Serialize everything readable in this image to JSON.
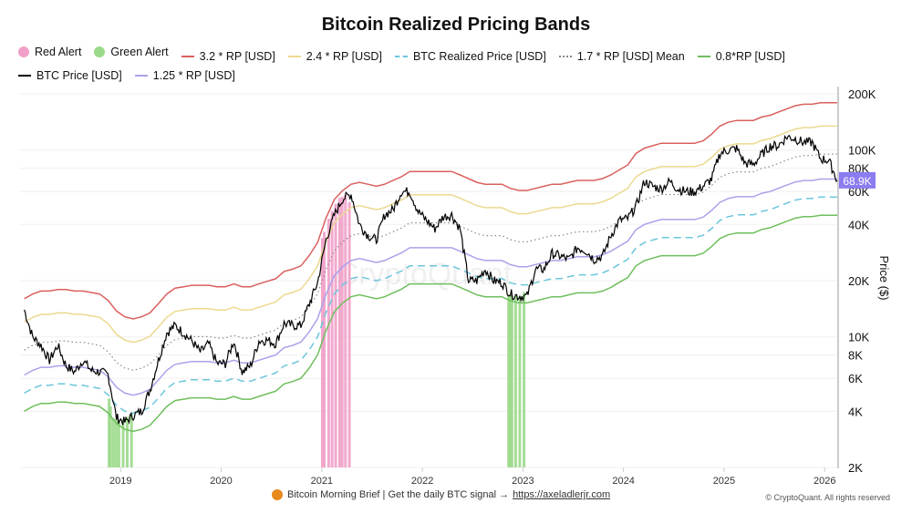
{
  "chart_data": {
    "type": "line",
    "title": "Bitcoin Realized Pricing Bands",
    "ylabel": "Price ($)",
    "yscale": "log",
    "ylim": [
      2000,
      200000
    ],
    "xlim": [
      "2018-01",
      "2026-02"
    ],
    "grid": true,
    "legend_position": "top",
    "x_ticks": [
      "2019",
      "2020",
      "2021",
      "2022",
      "2023",
      "2024",
      "2025",
      "2026"
    ],
    "y_ticks": [
      {
        "v": 2000,
        "label": "2K"
      },
      {
        "v": 4000,
        "label": "4K"
      },
      {
        "v": 6000,
        "label": "6K"
      },
      {
        "v": 8000,
        "label": "8K"
      },
      {
        "v": 10000,
        "label": "10K"
      },
      {
        "v": 20000,
        "label": "20K"
      },
      {
        "v": 40000,
        "label": "40K"
      },
      {
        "v": 60000,
        "label": "60K"
      },
      {
        "v": 80000,
        "label": "80K"
      },
      {
        "v": 100000,
        "label": "100K"
      },
      {
        "v": 200000,
        "label": "200K"
      }
    ],
    "last_value_label": "68.9K",
    "legend": [
      {
        "name": "Red Alert",
        "kind": "dot",
        "color": "#f0a0c8"
      },
      {
        "name": "Green Alert",
        "kind": "dot",
        "color": "#9bd98a"
      },
      {
        "name": "3.2 * RP [USD]",
        "kind": "line",
        "color": "#d9605e",
        "multiplier": 3.2
      },
      {
        "name": "2.4 * RP [USD]",
        "kind": "line",
        "color": "#ecd98f",
        "multiplier": 2.4
      },
      {
        "name": "BTC Realized Price [USD]",
        "kind": "dash",
        "color": "#6cc6dc",
        "multiplier": 1.0
      },
      {
        "name": "1.7 * RP [USD] Mean",
        "kind": "dot-line",
        "color": "#888888",
        "multiplier": 1.7
      },
      {
        "name": "0.8*RP [USD]",
        "kind": "line",
        "color": "#6fbf5e",
        "multiplier": 0.8
      },
      {
        "name": "BTC Price [USD]",
        "kind": "line",
        "color": "#000000"
      },
      {
        "name": "1.25 * RP [USD]",
        "kind": "line",
        "color": "#a9a3ea",
        "multiplier": 1.25
      }
    ],
    "months_start": "2018-01",
    "realized_price_k": [
      5.0,
      5.3,
      5.5,
      5.5,
      5.6,
      5.6,
      5.5,
      5.5,
      5.4,
      5.3,
      4.9,
      4.3,
      4.0,
      3.9,
      4.0,
      4.2,
      4.7,
      5.3,
      5.7,
      5.8,
      5.9,
      5.9,
      5.9,
      5.8,
      5.8,
      6.0,
      5.8,
      5.8,
      6.0,
      6.2,
      6.4,
      7.0,
      7.2,
      7.5,
      8.5,
      10.0,
      13.5,
      17,
      19,
      20.5,
      21,
      20.5,
      20,
      20.5,
      21.5,
      22.5,
      24,
      24,
      24,
      24,
      24,
      24,
      23,
      22,
      21,
      20.5,
      20.5,
      20.5,
      19.5,
      19,
      19,
      19.5,
      20,
      20.5,
      20.5,
      21,
      21.5,
      21.5,
      21.5,
      22,
      23,
      24.5,
      26,
      30,
      32,
      33,
      34,
      34,
      34,
      34,
      34,
      35,
      38,
      42,
      44,
      45,
      45,
      45,
      47,
      48,
      50,
      52,
      54,
      55,
      55,
      56,
      56,
      56
    ],
    "btc_price_k": [
      14,
      10,
      9,
      7.5,
      9,
      7,
      6.5,
      7.5,
      6.6,
      6.5,
      6.3,
      3.7,
      3.5,
      3.8,
      4.0,
      5.2,
      7.5,
      10.5,
      11.5,
      10.5,
      9.5,
      8.3,
      9.2,
      7.2,
      7.2,
      9.5,
      6.5,
      7.0,
      9.5,
      9.6,
      9.2,
      11.8,
      11.5,
      11.5,
      15,
      19.5,
      33,
      45,
      55,
      58,
      40,
      35,
      33,
      45,
      48,
      60,
      60,
      47,
      42,
      38,
      44,
      45,
      38,
      20,
      20,
      23,
      20,
      19.5,
      17,
      16.5,
      16.5,
      23,
      23,
      28,
      27,
      26,
      30,
      29,
      26,
      27,
      35,
      42,
      43,
      50,
      68,
      64,
      62,
      68,
      62,
      60,
      60,
      64,
      70,
      96,
      100,
      102,
      85,
      84,
      95,
      105,
      106,
      118,
      115,
      110,
      110,
      90,
      88,
      68.9
    ],
    "red_alerts": [
      "2021-01-03",
      "2021-01-10",
      "2021-01-26",
      "2021-02-08",
      "2021-02-21",
      "2021-03-05",
      "2021-03-14",
      "2021-03-26",
      "2021-04-10"
    ],
    "green_alerts": [
      "2018-11-20",
      "2018-11-25",
      "2018-12-05",
      "2018-12-15",
      "2018-12-25",
      "2019-01-10",
      "2019-01-25",
      "2019-02-10",
      "2022-11-10",
      "2022-11-15",
      "2022-11-22",
      "2022-12-05",
      "2022-12-20",
      "2023-01-05"
    ]
  },
  "watermark": "CryptoQuant",
  "footer": {
    "text": "Bitcoin Morning Brief | Get the daily BTC signal →",
    "link": "https://axeladlerjr.com",
    "copyright": "© CryptoQuant. All rights reserved"
  }
}
